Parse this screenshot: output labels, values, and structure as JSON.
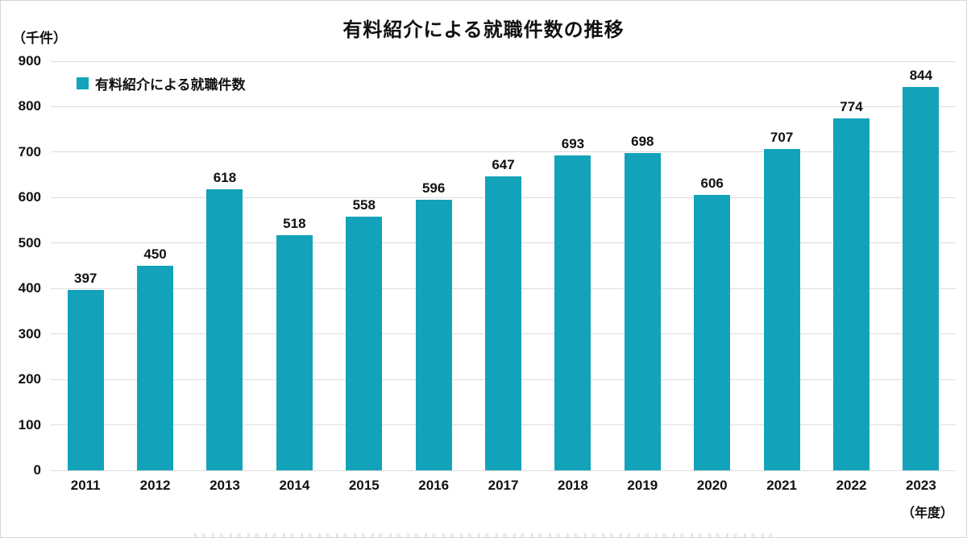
{
  "chart_data": {
    "type": "bar",
    "title": "有料紹介による就職件数の推移",
    "unit_label": "（千件）",
    "x_axis_suffix_label": "（年度）",
    "legend": {
      "label": "有料紹介による就職件数",
      "position": "top-left-inside"
    },
    "categories": [
      "2011",
      "2012",
      "2013",
      "2014",
      "2015",
      "2016",
      "2017",
      "2018",
      "2019",
      "2020",
      "2021",
      "2022",
      "2023"
    ],
    "values": [
      397,
      450,
      618,
      518,
      558,
      596,
      647,
      693,
      698,
      606,
      707,
      774,
      844
    ],
    "ylim": [
      0,
      900
    ],
    "ytick_interval": 100,
    "grid": true,
    "bar_color": "#12a3ba",
    "gridline_color": "#dcdcdc",
    "text_color": "#111111"
  }
}
